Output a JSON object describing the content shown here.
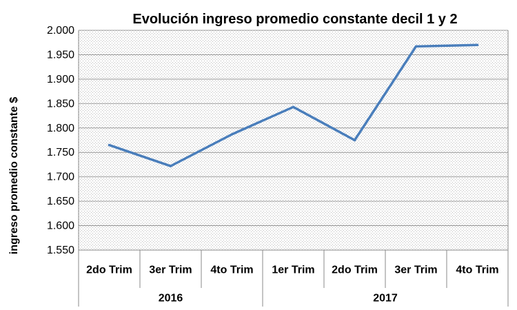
{
  "chart_data": {
    "type": "line",
    "title": "Evolución ingreso promedio constante decil 1 y 2",
    "ylabel": "ingreso promedio constante $",
    "xlabel": "",
    "ylim": [
      1550,
      2000
    ],
    "y_ticks": [
      2000,
      1950,
      1900,
      1850,
      1800,
      1750,
      1700,
      1650,
      1600,
      1550
    ],
    "y_tick_labels": [
      "2.000",
      "1.950",
      "1.900",
      "1.850",
      "1.800",
      "1.750",
      "1.700",
      "1.650",
      "1.600",
      "1.550"
    ],
    "categories": [
      "2do Trim",
      "3er Trim",
      "4to Trim",
      "1er Trim",
      "2do Trim",
      "3er Trim",
      "4to Trim"
    ],
    "category_groups": [
      {
        "label": "2016",
        "count": 3
      },
      {
        "label": "2017",
        "count": 4
      }
    ],
    "series": [
      {
        "values": [
          1765,
          1722,
          1787,
          1843,
          1775,
          1967,
          1970
        ],
        "color": "#4a7ebb"
      }
    ],
    "grid": true,
    "legend": "none",
    "plot_background": "dotted-gray"
  }
}
